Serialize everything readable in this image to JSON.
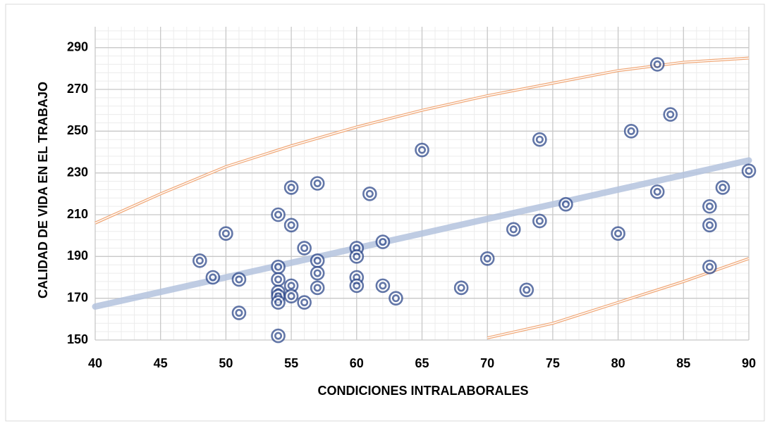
{
  "chart_data": {
    "type": "scatter",
    "xlabel": "CONDICIONES INTRALABORALES",
    "ylabel": "CALIDAD DE VIDA EN EL TRABAJO",
    "xlim": [
      40,
      90
    ],
    "xticks": [
      40,
      45,
      50,
      55,
      60,
      65,
      70,
      75,
      80,
      85,
      90
    ],
    "ylim": [
      150,
      300
    ],
    "yticks": [
      150,
      170,
      190,
      210,
      230,
      250,
      270,
      290
    ],
    "grid": true,
    "minor_grid": true,
    "series": [
      {
        "type": "scatter",
        "color": "#2f4a8c",
        "x": [
          48,
          49,
          50,
          51,
          51,
          54,
          54,
          54,
          54,
          54,
          54,
          54,
          55,
          55,
          55,
          55,
          56,
          56,
          57,
          57,
          57,
          57,
          60,
          60,
          60,
          60,
          61,
          62,
          62,
          63,
          65,
          68,
          70,
          72,
          73,
          74,
          74,
          76,
          80,
          81,
          83,
          83,
          84,
          87,
          87,
          87,
          88,
          90
        ],
        "values": [
          188,
          180,
          201,
          179,
          163,
          210,
          185,
          179,
          173,
          171,
          168,
          152,
          223,
          205,
          176,
          171,
          194,
          168,
          225,
          188,
          182,
          175,
          194,
          190,
          180,
          176,
          220,
          197,
          176,
          170,
          241,
          175,
          189,
          203,
          174,
          246,
          207,
          215,
          201,
          250,
          282,
          221,
          258,
          214,
          205,
          185,
          223,
          231
        ]
      },
      {
        "type": "line",
        "color": "#b4c3de",
        "x": [
          40,
          90
        ],
        "values": [
          166,
          236
        ]
      },
      {
        "type": "band",
        "color": "#f0a878",
        "x": [
          40,
          45,
          50,
          55,
          60,
          65,
          70,
          75,
          80,
          85,
          90
        ],
        "values": [
          206,
          220,
          233,
          243,
          252,
          260,
          267,
          273,
          279,
          283,
          285
        ]
      },
      {
        "type": "band",
        "color": "#f0a878",
        "x": [
          70,
          75,
          80,
          85,
          90
        ],
        "values": [
          151,
          158,
          168,
          178,
          189
        ]
      }
    ]
  }
}
